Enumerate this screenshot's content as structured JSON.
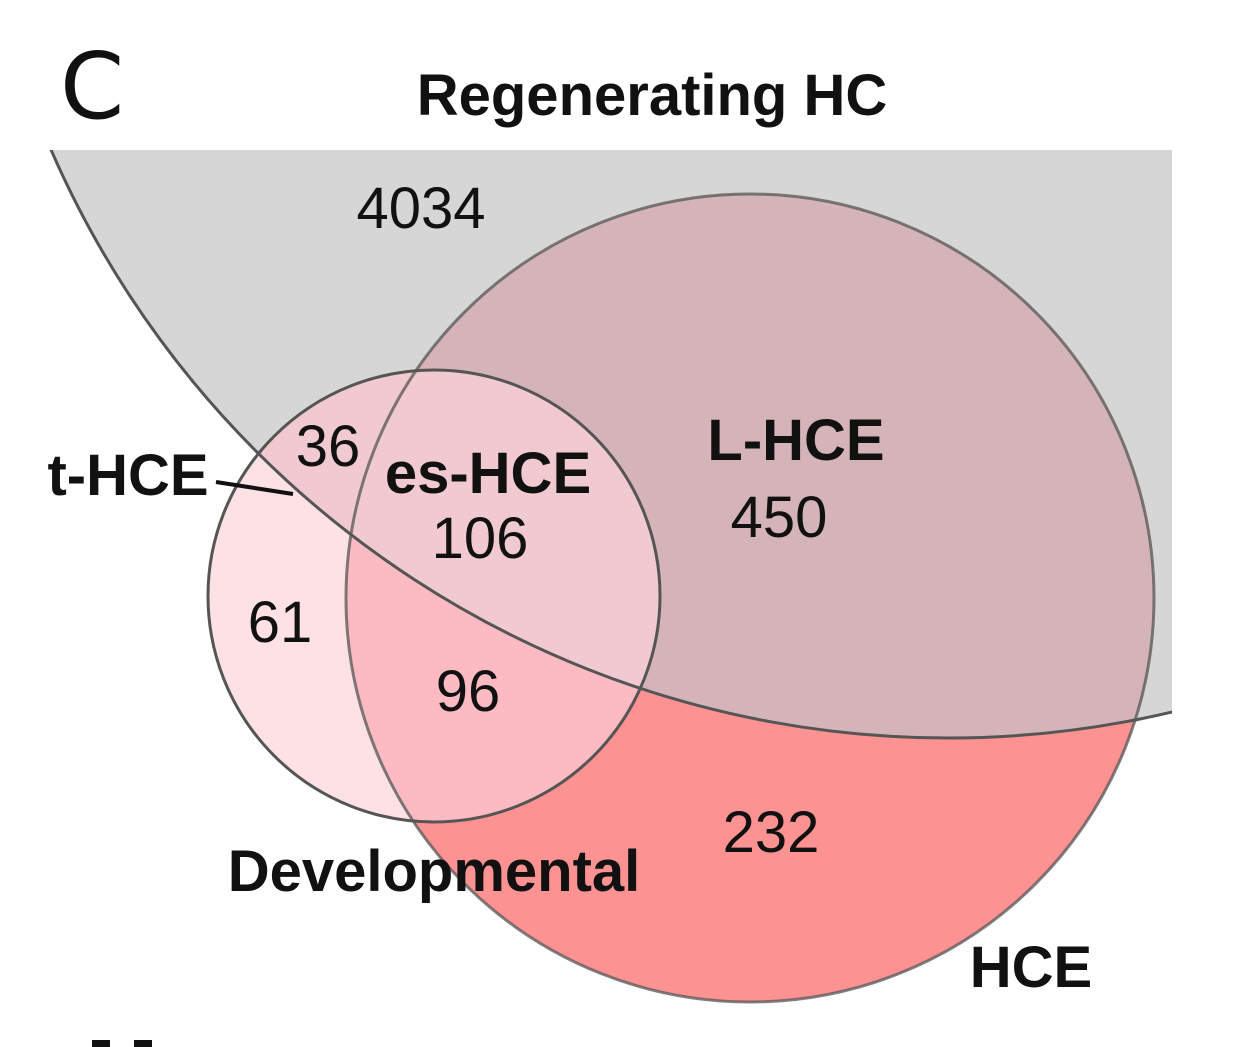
{
  "panel_letter": "C",
  "sets": {
    "regenerating": {
      "label": "Regenerating HC",
      "fill": "#d6d6d6"
    },
    "hce": {
      "label": "HCE",
      "fill": "#fd9292"
    },
    "developmental": {
      "label": "Developmental",
      "fill": "#fde1e5"
    }
  },
  "region_labels": {
    "t_hce": "t-HCE",
    "es_hce": "es-HCE",
    "l_hce": "L-HCE"
  },
  "counts": {
    "regenerating_only": "4034",
    "regen_dev_only": "36",
    "all_three": "106",
    "regen_hce_only": "450",
    "dev_only": "61",
    "dev_hce_only": "96",
    "hce_only": "232"
  },
  "colors": {
    "outline": "#555555",
    "regen_hce_overlap": "#d4b4b8",
    "dev_hce_overlap": "#fcbac2",
    "regen_dev_overlap": "#f1c9d0"
  }
}
